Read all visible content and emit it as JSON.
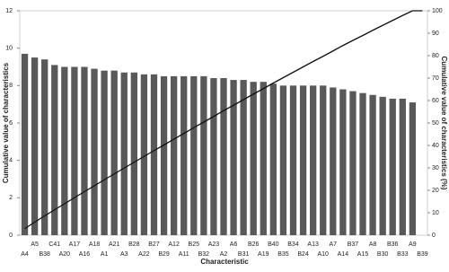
{
  "chart_data": {
    "type": "pareto",
    "x_label": "Characteristic",
    "y_label": "Cumulative value of characteristics",
    "y2_label": "Cumulative value of characteristics (%)",
    "categories": [
      "A4",
      "A5",
      "B38",
      "C41",
      "A20",
      "A17",
      "A16",
      "A18",
      "A1",
      "A21",
      "A3",
      "B28",
      "A22",
      "B27",
      "B29",
      "A12",
      "A11",
      "B25",
      "B32",
      "A23",
      "A2",
      "A6",
      "B31",
      "B26",
      "A19",
      "B40",
      "B35",
      "B34",
      "B24",
      "A13",
      "A10",
      "A7",
      "A14",
      "B37",
      "A15",
      "A8",
      "B30",
      "B36",
      "B33",
      "A9",
      "B39"
    ],
    "series": [
      {
        "type": "bar",
        "color": "#595959",
        "values": [
          9.7,
          9.5,
          9.4,
          9.1,
          9.0,
          9.0,
          9.0,
          8.9,
          8.8,
          8.8,
          8.7,
          8.7,
          8.6,
          8.6,
          8.5,
          8.5,
          8.5,
          8.5,
          8.5,
          8.4,
          8.4,
          8.3,
          8.3,
          8.2,
          8.2,
          8.1,
          8.0,
          8.0,
          8.0,
          8.0,
          8.0,
          7.9,
          7.8,
          7.7,
          7.6,
          7.5,
          7.4,
          7.3,
          7.3,
          7.1,
          0
        ]
      },
      {
        "type": "line",
        "axis": "y2",
        "color": "#111111",
        "values": [
          2.9,
          5.8,
          8.6,
          11.3,
          14.0,
          16.7,
          19.4,
          22.0,
          24.7,
          27.3,
          29.9,
          32.5,
          35.1,
          37.7,
          40.2,
          42.8,
          45.3,
          47.9,
          50.4,
          52.9,
          55.5,
          57.9,
          60.4,
          62.9,
          65.3,
          67.8,
          70.2,
          72.6,
          75.0,
          77.4,
          79.7,
          82.1,
          84.5,
          86.8,
          89.0,
          91.3,
          93.5,
          95.7,
          97.9,
          100,
          100
        ]
      }
    ],
    "ylim": [
      0,
      12
    ],
    "yticks": [
      0,
      2,
      4,
      6,
      8,
      10,
      12
    ],
    "y2lim": [
      0,
      100
    ],
    "y2ticks": [
      0,
      10,
      20,
      30,
      40,
      50,
      60,
      70,
      80,
      90,
      100
    ],
    "grid": false
  }
}
